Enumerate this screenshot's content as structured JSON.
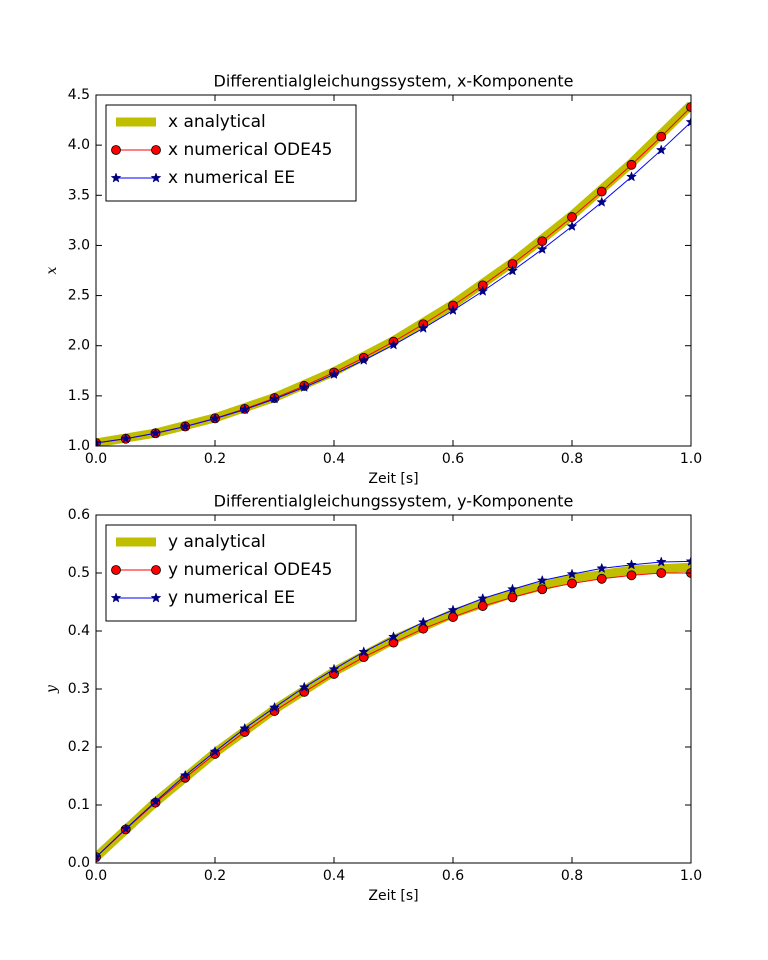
{
  "chart_data": [
    {
      "type": "line",
      "title": "Differentialgleichungssystem, x-Komponente",
      "xlabel": "Zeit [s]",
      "ylabel": "x",
      "xlim": [
        0,
        1
      ],
      "ylim": [
        1.0,
        4.5
      ],
      "xticks": [
        {
          "value": 0,
          "label": "0.0"
        },
        {
          "value": 0.2,
          "label": "0.2"
        },
        {
          "value": 0.4,
          "label": "0.4"
        },
        {
          "value": 0.6,
          "label": "0.6"
        },
        {
          "value": 0.8,
          "label": "0.8"
        },
        {
          "value": 1,
          "label": "1.0"
        }
      ],
      "yticks": [
        {
          "value": 1,
          "label": "1.0"
        },
        1.5,
        {
          "value": 2,
          "label": "2.0"
        },
        2.5,
        {
          "value": 3,
          "label": "3.0"
        },
        3.5,
        {
          "value": 4,
          "label": "4.0"
        },
        4.5
      ],
      "legend": "upper left",
      "grid": false,
      "series": [
        {
          "name": "x analytical",
          "color": "#bfbf00",
          "marker": "none",
          "x": [
            0,
            0.1,
            0.2,
            0.3,
            0.4,
            0.5,
            0.6,
            0.7,
            0.8,
            0.9,
            1
          ],
          "values": [
            1.03,
            1.129,
            1.28,
            1.484,
            1.741,
            2.05,
            2.413,
            2.829,
            3.299,
            3.822,
            4.4
          ]
        },
        {
          "name": "x numerical ODE45",
          "color": "#ff0000",
          "marker": "circle",
          "x": [
            0,
            0.05,
            0.1,
            0.15,
            0.2,
            0.25,
            0.3,
            0.35,
            0.4,
            0.45,
            0.5,
            0.55,
            0.6,
            0.65,
            0.7,
            0.75,
            0.8,
            0.85,
            0.9,
            0.95,
            1
          ],
          "values": [
            1.03,
            1.072,
            1.127,
            1.195,
            1.276,
            1.37,
            1.478,
            1.599,
            1.733,
            1.88,
            2.04,
            2.214,
            2.401,
            2.602,
            2.815,
            3.042,
            3.283,
            3.537,
            3.804,
            4.085,
            4.38
          ]
        },
        {
          "name": "x numerical EE",
          "color": "#0000ff",
          "marker": "star",
          "x": [
            0,
            0.05,
            0.1,
            0.15,
            0.2,
            0.25,
            0.3,
            0.35,
            0.4,
            0.45,
            0.5,
            0.55,
            0.6,
            0.65,
            0.7,
            0.75,
            0.8,
            0.85,
            0.9,
            0.95,
            1
          ],
          "values": [
            1.03,
            1.073,
            1.127,
            1.194,
            1.273,
            1.364,
            1.469,
            1.585,
            1.714,
            1.855,
            2.008,
            2.174,
            2.352,
            2.543,
            2.746,
            2.961,
            3.19,
            3.431,
            3.684,
            3.951,
            4.23
          ]
        }
      ]
    },
    {
      "type": "line",
      "title": "Differentialgleichungssystem, y-Komponente",
      "xlabel": "Zeit [s]",
      "ylabel": "y",
      "xlim": [
        0,
        1
      ],
      "ylim": [
        0,
        0.6
      ],
      "xticks": [
        {
          "value": 0,
          "label": "0.0"
        },
        {
          "value": 0.2,
          "label": "0.2"
        },
        {
          "value": 0.4,
          "label": "0.4"
        },
        {
          "value": 0.6,
          "label": "0.6"
        },
        {
          "value": 0.8,
          "label": "0.8"
        },
        {
          "value": 1,
          "label": "1.0"
        }
      ],
      "yticks": [
        {
          "value": 0,
          "label": "0.0"
        },
        0.1,
        0.2,
        0.3,
        0.4,
        0.5,
        0.6
      ],
      "legend": "upper left",
      "grid": false,
      "series": [
        {
          "name": "y analytical",
          "color": "#bfbf00",
          "marker": "none",
          "x": [
            0,
            0.1,
            0.2,
            0.3,
            0.4,
            0.5,
            0.6,
            0.7,
            0.8,
            0.9,
            1
          ],
          "values": [
            0.01,
            0.105,
            0.19,
            0.265,
            0.33,
            0.385,
            0.43,
            0.465,
            0.49,
            0.505,
            0.51
          ]
        },
        {
          "name": "y numerical ODE45",
          "color": "#ff0000",
          "marker": "circle",
          "x": [
            0,
            0.05,
            0.1,
            0.15,
            0.2,
            0.25,
            0.3,
            0.35,
            0.4,
            0.45,
            0.5,
            0.55,
            0.6,
            0.65,
            0.7,
            0.75,
            0.8,
            0.85,
            0.9,
            0.95,
            1
          ],
          "values": [
            0.01,
            0.058,
            0.104,
            0.147,
            0.188,
            0.226,
            0.262,
            0.295,
            0.326,
            0.355,
            0.38,
            0.404,
            0.424,
            0.443,
            0.458,
            0.472,
            0.482,
            0.49,
            0.496,
            0.5,
            0.5
          ]
        },
        {
          "name": "y numerical EE",
          "color": "#0000ff",
          "marker": "star",
          "x": [
            0,
            0.05,
            0.1,
            0.15,
            0.2,
            0.25,
            0.3,
            0.35,
            0.4,
            0.45,
            0.5,
            0.55,
            0.6,
            0.65,
            0.7,
            0.75,
            0.8,
            0.85,
            0.9,
            0.95,
            1
          ],
          "values": [
            0.01,
            0.059,
            0.106,
            0.151,
            0.192,
            0.232,
            0.268,
            0.303,
            0.334,
            0.364,
            0.39,
            0.415,
            0.436,
            0.456,
            0.472,
            0.487,
            0.498,
            0.508,
            0.514,
            0.519,
            0.52
          ]
        }
      ]
    }
  ]
}
